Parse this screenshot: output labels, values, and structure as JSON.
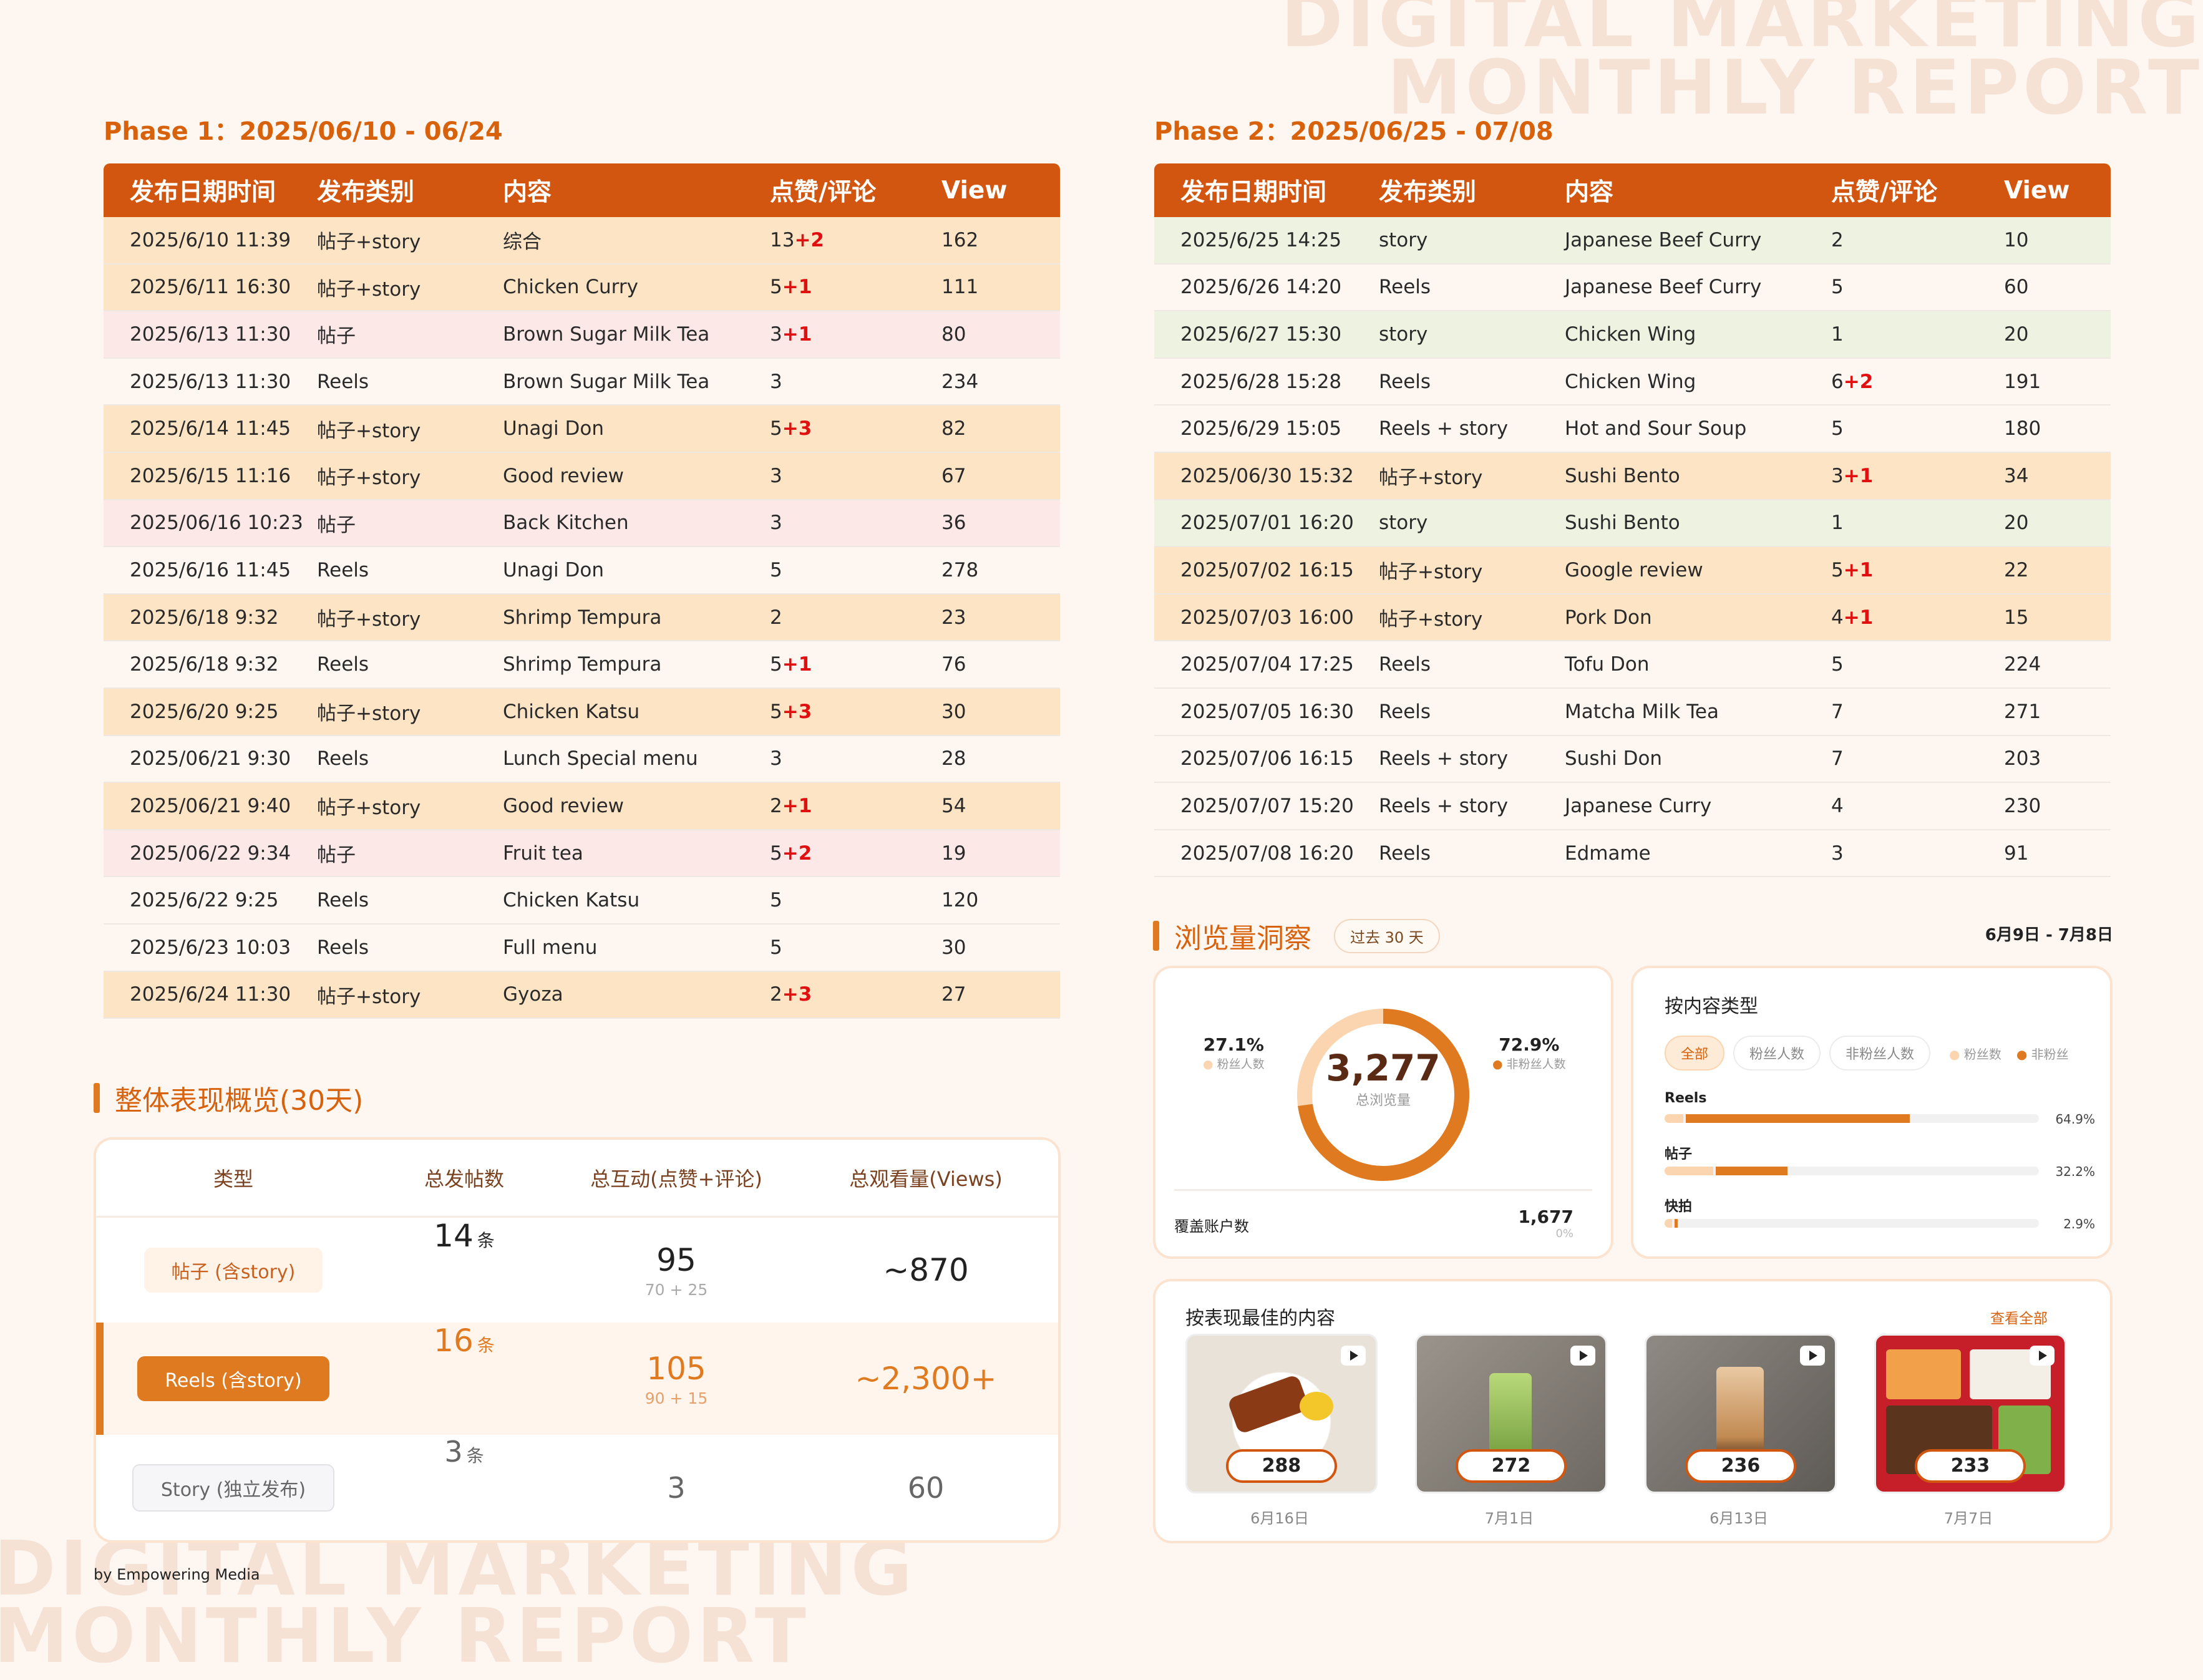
{
  "watermark": {
    "line1": "DIGITAL MARKETING",
    "line2": "MONTHLY REPORT"
  },
  "phase1": {
    "title": "Phase 1：2025/06/10 - 06/24",
    "headers": [
      "发布日期时间",
      "发布类别",
      "内容",
      "点赞/评论",
      "View"
    ],
    "rows": [
      {
        "date": "2025/6/10 11:39",
        "type": "帖子+story",
        "content": "综合",
        "likes": "13",
        "plus": "+2",
        "view": "162",
        "color": "orange"
      },
      {
        "date": "2025/6/11 16:30",
        "type": "帖子+story",
        "content": "Chicken Curry",
        "likes": "5",
        "plus": "+1",
        "view": "111",
        "color": "orange"
      },
      {
        "date": "2025/6/13 11:30",
        "type": "帖子",
        "content": "Brown Sugar Milk Tea",
        "likes": "3",
        "plus": "+1",
        "view": "80",
        "color": "pink"
      },
      {
        "date": "2025/6/13 11:30",
        "type": "Reels",
        "content": "Brown Sugar Milk Tea",
        "likes": "3",
        "plus": "",
        "view": "234",
        "color": "white"
      },
      {
        "date": "2025/6/14 11:45",
        "type": "帖子+story",
        "content": "Unagi Don",
        "likes": "5",
        "plus": "+3",
        "view": "82",
        "color": "orange"
      },
      {
        "date": "2025/6/15 11:16",
        "type": "帖子+story",
        "content": "Good review",
        "likes": "3",
        "plus": "",
        "view": "67",
        "color": "orange"
      },
      {
        "date": "2025/06/16 10:23",
        "type": "帖子",
        "content": "Back Kitchen",
        "likes": "3",
        "plus": "",
        "view": "36",
        "color": "pink"
      },
      {
        "date": "2025/6/16 11:45",
        "type": "Reels",
        "content": "Unagi Don",
        "likes": "5",
        "plus": "",
        "view": "278",
        "color": "white"
      },
      {
        "date": "2025/6/18 9:32",
        "type": "帖子+story",
        "content": "Shrimp Tempura",
        "likes": "2",
        "plus": "",
        "view": "23",
        "color": "orange"
      },
      {
        "date": "2025/6/18 9:32",
        "type": "Reels",
        "content": "Shrimp Tempura",
        "likes": "5",
        "plus": "+1",
        "view": "76",
        "color": "white"
      },
      {
        "date": "2025/6/20 9:25",
        "type": "帖子+story",
        "content": "Chicken Katsu",
        "likes": "5",
        "plus": "+3",
        "view": "30",
        "color": "orange"
      },
      {
        "date": "2025/06/21 9:30",
        "type": "Reels",
        "content": "Lunch Special menu",
        "likes": "3",
        "plus": "",
        "view": "28",
        "color": "white"
      },
      {
        "date": "2025/06/21 9:40",
        "type": "帖子+story",
        "content": "Good review",
        "likes": "2",
        "plus": "+1",
        "view": "54",
        "color": "orange"
      },
      {
        "date": "2025/06/22 9:34",
        "type": "帖子",
        "content": "Fruit tea",
        "likes": "5",
        "plus": "+2",
        "view": "19",
        "color": "pink"
      },
      {
        "date": "2025/6/22 9:25",
        "type": "Reels",
        "content": "Chicken Katsu",
        "likes": "5",
        "plus": "",
        "view": "120",
        "color": "white"
      },
      {
        "date": "2025/6/23 10:03",
        "type": "Reels",
        "content": "Full menu",
        "likes": "5",
        "plus": "",
        "view": "30",
        "color": "white"
      },
      {
        "date": "2025/6/24 11:30",
        "type": "帖子+story",
        "content": "Gyoza",
        "likes": "2",
        "plus": "+3",
        "view": "27",
        "color": "orange"
      }
    ]
  },
  "phase2": {
    "title": "Phase 2：2025/06/25 - 07/08",
    "headers": [
      "发布日期时间",
      "发布类别",
      "内容",
      "点赞/评论",
      "View"
    ],
    "rows": [
      {
        "date": "2025/6/25 14:25",
        "type": "story",
        "content": "Japanese Beef Curry",
        "likes": "2",
        "plus": "",
        "view": "10",
        "color": "green"
      },
      {
        "date": "2025/6/26 14:20",
        "type": "Reels",
        "content": "Japanese Beef Curry",
        "likes": "5",
        "plus": "",
        "view": "60",
        "color": "white"
      },
      {
        "date": "2025/6/27 15:30",
        "type": "story",
        "content": "Chicken Wing",
        "likes": "1",
        "plus": "",
        "view": "20",
        "color": "green"
      },
      {
        "date": "2025/6/28 15:28",
        "type": "Reels",
        "content": "Chicken Wing",
        "likes": "6",
        "plus": "+2",
        "view": "191",
        "color": "white"
      },
      {
        "date": "2025/6/29 15:05",
        "type": "Reels + story",
        "content": "Hot and Sour Soup",
        "likes": "5",
        "plus": "",
        "view": "180",
        "color": "white"
      },
      {
        "date": "2025/06/30 15:32",
        "type": "帖子+story",
        "content": "Sushi Bento",
        "likes": "3",
        "plus": "+1",
        "view": "34",
        "color": "orange"
      },
      {
        "date": "2025/07/01 16:20",
        "type": "story",
        "content": "Sushi Bento",
        "likes": "1",
        "plus": "",
        "view": "20",
        "color": "green"
      },
      {
        "date": "2025/07/02 16:15",
        "type": "帖子+story",
        "content": "Google review",
        "likes": "5",
        "plus": "+1",
        "view": "22",
        "color": "orange"
      },
      {
        "date": "2025/07/03 16:00",
        "type": "帖子+story",
        "content": "Pork Don",
        "likes": "4",
        "plus": "+1",
        "view": "15",
        "color": "orange"
      },
      {
        "date": "2025/07/04 17:25",
        "type": "Reels",
        "content": "Tofu Don",
        "likes": "5",
        "plus": "",
        "view": "224",
        "color": "white"
      },
      {
        "date": "2025/07/05 16:30",
        "type": "Reels",
        "content": "Matcha Milk Tea",
        "likes": "7",
        "plus": "",
        "view": "271",
        "color": "white"
      },
      {
        "date": "2025/07/06 16:15",
        "type": "Reels + story",
        "content": "Sushi Don",
        "likes": "7",
        "plus": "",
        "view": "203",
        "color": "white"
      },
      {
        "date": "2025/07/07 15:20",
        "type": "Reels + story",
        "content": "Japanese Curry",
        "likes": "4",
        "plus": "",
        "view": "230",
        "color": "white"
      },
      {
        "date": "2025/07/08 16:20",
        "type": "Reels",
        "content": "Edmame",
        "likes": "3",
        "plus": "",
        "view": "91",
        "color": "white"
      }
    ]
  },
  "overview": {
    "title": "整体表现概览(30天)",
    "headers": [
      "类型",
      "总发帖数",
      "总互动(点赞+评论)",
      "总观看量(Views)"
    ],
    "rows": [
      {
        "label": "帖子 (含story)",
        "count": "14",
        "unit": "条",
        "interact": "95",
        "interact_sub": "70 + 25",
        "views": "~870",
        "style": "light"
      },
      {
        "label": "Reels (含story)",
        "count": "16",
        "unit": "条",
        "interact": "105",
        "interact_sub": "90 + 15",
        "views": "~2,300+",
        "style": "accent"
      },
      {
        "label": "Story (独立发布)",
        "count": "3",
        "unit": "条",
        "interact": "3",
        "interact_sub": "",
        "views": "60",
        "style": "gray"
      }
    ]
  },
  "insights": {
    "title": "浏览量洞察",
    "period_pill": "过去 30 天",
    "date_range": "6月9日 - 7月8日",
    "donut": {
      "total": "3,277",
      "total_label": "总浏览量",
      "followers_pct": "27.1%",
      "followers_label": "粉丝人数",
      "followers_fraction": 0.271,
      "nonfollowers_pct": "72.9%",
      "nonfollowers_label": "非粉丝人数",
      "nonfollowers_fraction": 0.729,
      "colors": {
        "followers": "#fbd5b0",
        "nonfollowers": "#e07a21"
      }
    },
    "reach_label": "覆盖账户数",
    "reach_value": "1,677",
    "reach_change": "0%",
    "content_types": {
      "title": "按内容类型",
      "segments": [
        "全部",
        "粉丝人数",
        "非粉丝人数"
      ],
      "legend": [
        "粉丝数",
        "非粉丝"
      ],
      "items": [
        {
          "label": "Reels",
          "pct": "64.9%",
          "value": 0.649,
          "followers": 0.05
        },
        {
          "label": "帖子",
          "pct": "32.2%",
          "value": 0.322,
          "followers": 0.13
        },
        {
          "label": "快拍",
          "pct": "2.9%",
          "value": 0.029,
          "followers": 0.02
        }
      ]
    },
    "best": {
      "title": "按表现最佳的内容",
      "view_all": "查看全部",
      "items": [
        {
          "views": "288",
          "date": "6月16日",
          "icon": "play-icon"
        },
        {
          "views": "272",
          "date": "7月1日",
          "icon": "play-icon"
        },
        {
          "views": "236",
          "date": "6月13日",
          "icon": "play-icon"
        },
        {
          "views": "233",
          "date": "7月7日",
          "icon": "play-icon"
        }
      ]
    }
  },
  "footer": {
    "credit": "by Empowering Media"
  }
}
